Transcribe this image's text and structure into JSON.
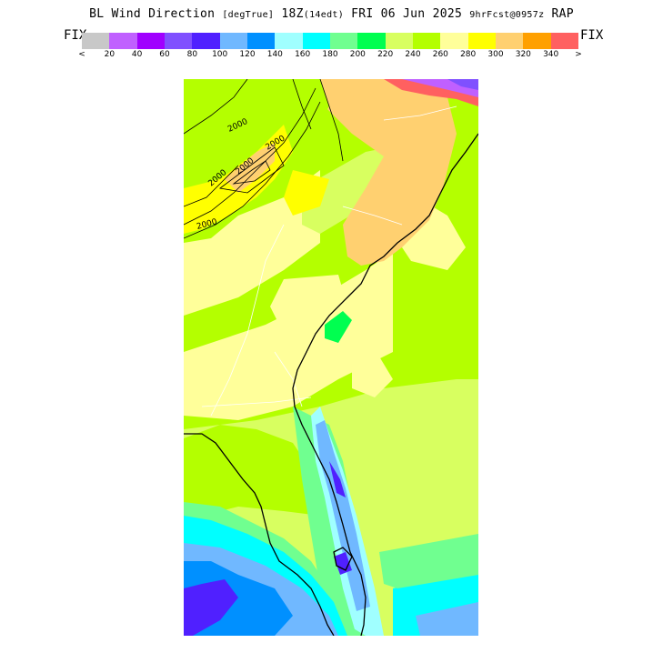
{
  "header": {
    "product": "BL Wind Direction",
    "units": "[degTrue]",
    "valid_time": "18Z",
    "local_time": "(14edt)",
    "date": "FRI 06 Jun 2025",
    "forecast": "9hrFcst@0957z",
    "model": "RAP"
  },
  "legend": {
    "fix_left": "FIX",
    "fix_right": "FIX",
    "colors": [
      "#c8c8c8",
      "#c060ff",
      "#a000ff",
      "#8050ff",
      "#5020ff",
      "#70b8ff",
      "#0090ff",
      "#a0ffff",
      "#00ffff",
      "#70ff90",
      "#00ff50",
      "#d8ff60",
      "#b4ff00",
      "#ffff9a",
      "#ffff00",
      "#ffd070",
      "#ffa000",
      "#ff6060"
    ],
    "tick_labels": [
      "<",
      "20",
      "40",
      "60",
      "80",
      "100",
      "120",
      "140",
      "160",
      "180",
      "200",
      "220",
      "240",
      "260",
      "280",
      "300",
      "320",
      "340",
      ">"
    ]
  },
  "map": {
    "contour_labels": [
      "2000",
      "2000",
      "2000",
      "2000",
      "2000"
    ]
  }
}
